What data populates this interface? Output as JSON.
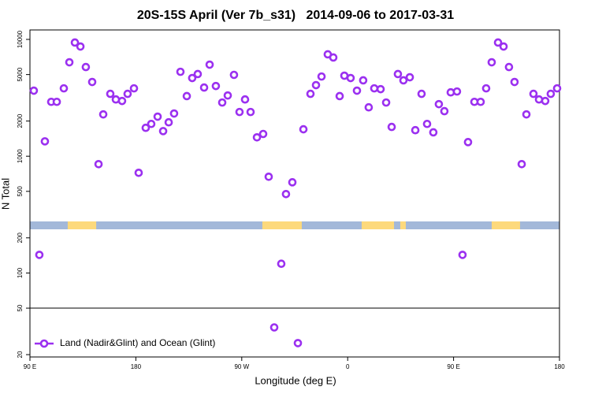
{
  "chart_data": {
    "type": "scatter",
    "title": "20S-15S April (Ver 7b_s31)   2014-09-06 to 2017-03-31",
    "x_label": "Longitude (deg E)",
    "y_label": "N Total",
    "log_y": true,
    "xlim": [
      90,
      540
    ],
    "ylim": [
      19.1,
      12050
    ],
    "xticks": [
      {
        "value": 90,
        "label": "90 E"
      },
      {
        "value": 180,
        "label": "180"
      },
      {
        "value": 270,
        "label": "90 W"
      },
      {
        "value": 360,
        "label": "0"
      },
      {
        "value": 450,
        "label": "90 E"
      },
      {
        "value": 540,
        "label": "180"
      }
    ],
    "yticks": [
      20,
      50,
      100,
      200,
      500,
      1000,
      2000,
      5000,
      10000
    ],
    "reference_line": 50,
    "strip_colors": {
      "ocean": "#a3b8d9",
      "land": "#fdd97c"
    },
    "land_bands": [
      [
        122.1,
        146.3
      ],
      [
        287.5,
        321.0
      ],
      [
        371.9,
        399.4
      ],
      [
        404.7,
        409.4
      ],
      [
        482.4,
        506.5
      ]
    ],
    "legend": "bottom-left",
    "series": [
      {
        "name": "Land (Nadir&Glint) and Ocean (Glint)",
        "color": "#9b30f0",
        "x": [
          93.3,
          98.0,
          102.7,
          108.1,
          112.8,
          118.8,
          123.5,
          128.2,
          132.9,
          137.5,
          142.9,
          148.3,
          152.3,
          158.3,
          163.0,
          168.3,
          173.0,
          178.4,
          182.4,
          188.4,
          193.1,
          198.5,
          203.2,
          207.9,
          212.5,
          217.9,
          223.3,
          227.9,
          232.6,
          238.0,
          242.7,
          248.0,
          253.4,
          258.1,
          263.4,
          268.1,
          272.8,
          277.5,
          282.9,
          288.2,
          292.9,
          297.6,
          303.6,
          307.6,
          313.0,
          317.7,
          322.4,
          328.4,
          333.1,
          337.8,
          343.1,
          347.8,
          353.2,
          357.2,
          362.5,
          367.9,
          373.2,
          377.9,
          382.6,
          388.0,
          392.7,
          397.4,
          402.7,
          407.4,
          412.8,
          417.5,
          422.8,
          427.5,
          432.8,
          437.5,
          442.2,
          447.6,
          452.9,
          457.6,
          462.3,
          467.7,
          473.0,
          477.7,
          482.4,
          487.8,
          492.5,
          497.1,
          501.8,
          507.9,
          511.9,
          517.9,
          522.6,
          527.9,
          532.6,
          538.0
        ],
        "values": [
          3640,
          143,
          1340,
          2920,
          2920,
          3810,
          6370,
          9400,
          8690,
          5800,
          4320,
          855,
          2280,
          3420,
          3060,
          2970,
          3420,
          3810,
          721,
          1750,
          1890,
          2180,
          1640,
          1950,
          2320,
          5280,
          3270,
          4670,
          5050,
          3870,
          6080,
          3990,
          2880,
          3310,
          4970,
          2390,
          3060,
          2390,
          1450,
          1550,
          667,
          34.2,
          120,
          474,
          598,
          25.1,
          1700,
          3420,
          4060,
          4810,
          7450,
          7000,
          3270,
          4890,
          4670,
          3640,
          4460,
          2620,
          3810,
          3750,
          2880,
          1780,
          5050,
          4460,
          4740,
          1670,
          3420,
          1890,
          1600,
          2790,
          2430,
          3520,
          3580,
          143,
          1320,
          2920,
          2920,
          3810,
          6370,
          9400,
          8690,
          5800,
          4320,
          855,
          2280,
          3420,
          3060,
          2970,
          3420,
          3810
        ]
      }
    ]
  }
}
